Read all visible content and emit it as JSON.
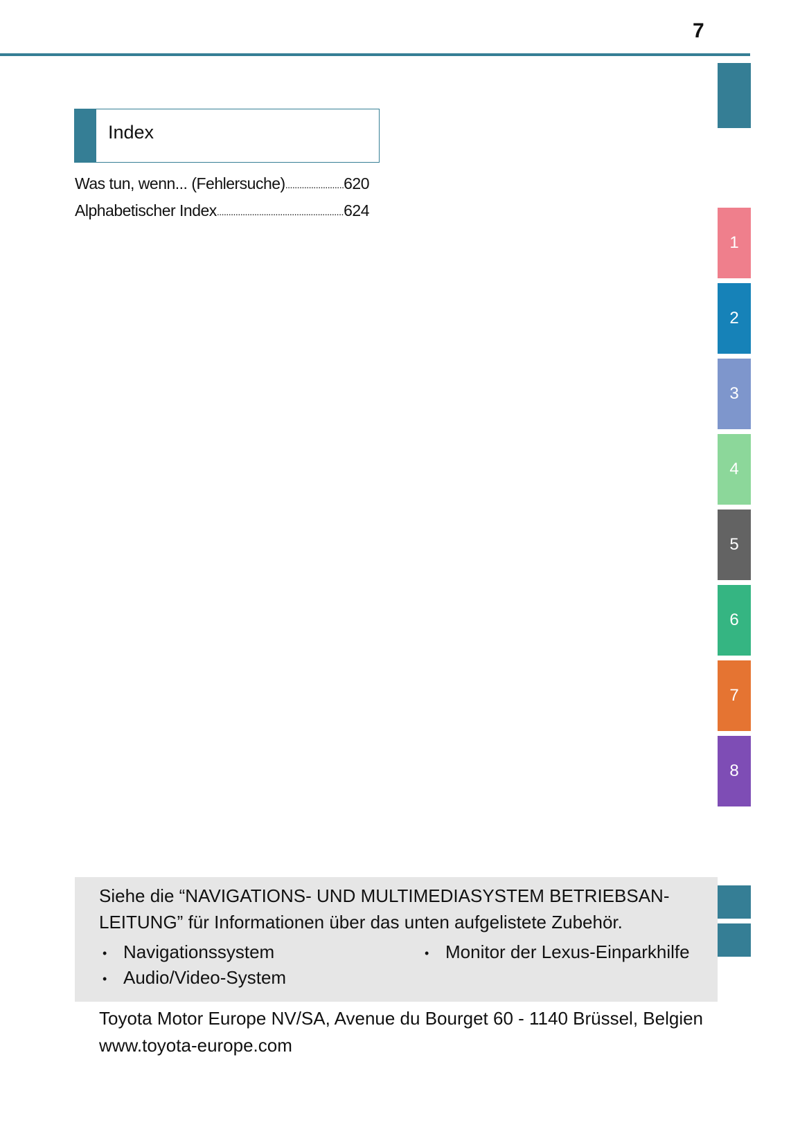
{
  "page_number": "7",
  "colors": {
    "accent": "#357e95",
    "note_bg": "#e6e6e6"
  },
  "tabs": [
    {
      "label": "",
      "color": "#357e95"
    },
    {
      "label": "1",
      "color": "#ef7f8c"
    },
    {
      "label": "2",
      "color": "#1682b8"
    },
    {
      "label": "3",
      "color": "#7e96cc"
    },
    {
      "label": "4",
      "color": "#8cd79a"
    },
    {
      "label": "5",
      "color": "#636363"
    },
    {
      "label": "6",
      "color": "#35b582"
    },
    {
      "label": "7",
      "color": "#e57432"
    },
    {
      "label": "8",
      "color": "#7e4db5"
    },
    {
      "label": "",
      "color": "#357e95"
    },
    {
      "label": "",
      "color": "#357e95"
    }
  ],
  "section": {
    "title": "Index"
  },
  "toc": [
    {
      "label": "Was tun, wenn... (Fehlersuche)",
      "page": "620"
    },
    {
      "label": "Alphabetischer Index",
      "page": "624"
    }
  ],
  "note": {
    "text": "Siehe die “NAVIGATIONS- UND MULTIMEDIASYSTEM BETRIEBSAN-LEITUNG” für Informationen über das unten aufgelistete Zubehör.",
    "bullet": "•",
    "items": [
      "Navigationssystem",
      "Monitor der Lexus-Einparkhilfe",
      "Audio/Video-System"
    ]
  },
  "footer": {
    "address": "Toyota Motor Europe NV/SA, Avenue du Bourget 60 - 1140 Brüssel, Belgien",
    "url": "www.toyota-europe.com"
  }
}
